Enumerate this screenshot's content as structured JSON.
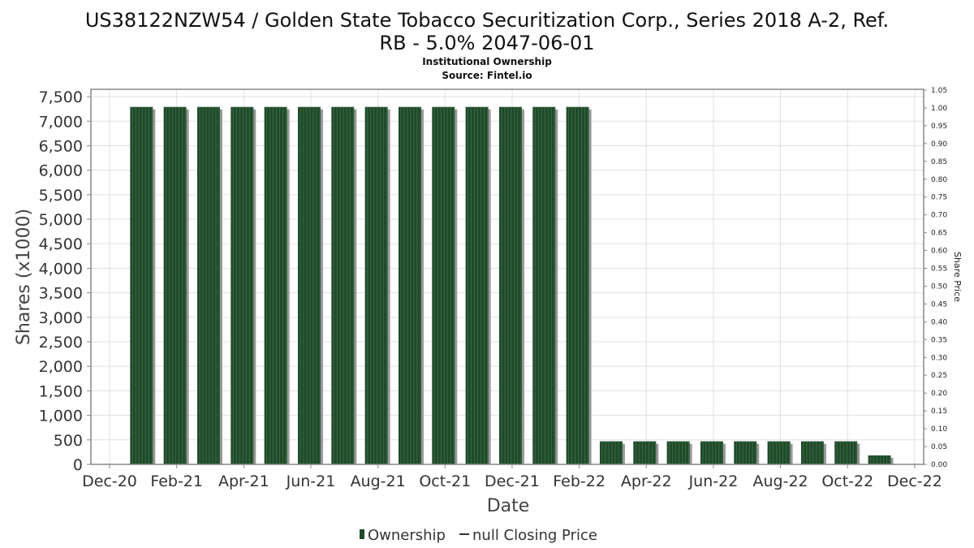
{
  "chart_data": {
    "type": "bar",
    "title": "US38122NZW54 / Golden State Tobacco Securitization Corp., Series 2018 A-2, Ref. RB - 5.0% 2047-06-01",
    "title_lines": [
      "US38122NZW54 / Golden State Tobacco Securitization Corp., Series 2018 A-2, Ref.",
      "RB - 5.0% 2047-06-01"
    ],
    "subtitle": "Institutional Ownership",
    "source": "Source: Fintel.io",
    "xlabel": "Date",
    "ylabel": "Shares (x1000)",
    "y2label": "Share Price",
    "x_tick_labels": [
      "Dec-20",
      "Feb-21",
      "Apr-21",
      "Jun-21",
      "Aug-21",
      "Oct-21",
      "Dec-21",
      "Feb-22",
      "Apr-22",
      "Jun-22",
      "Aug-22",
      "Oct-22",
      "Dec-22"
    ],
    "y_ticks": [
      0,
      500,
      1000,
      1500,
      2000,
      2500,
      3000,
      3500,
      4000,
      4500,
      5000,
      5500,
      6000,
      6500,
      7000,
      7500
    ],
    "y_tick_labels": [
      "0",
      "500",
      "1,000",
      "1,500",
      "2,000",
      "2,500",
      "3,000",
      "3,500",
      "4,000",
      "4,500",
      "5,000",
      "5,500",
      "6,000",
      "6,500",
      "7,000",
      "7,500"
    ],
    "y2_tick_labels": [
      "0.00",
      "0.05",
      "0.10",
      "0.15",
      "0.20",
      "0.25",
      "0.30",
      "0.35",
      "0.40",
      "0.45",
      "0.50",
      "0.55",
      "0.60",
      "0.65",
      "0.70",
      "0.75",
      "0.80",
      "0.85",
      "0.90",
      "0.95",
      "1.00",
      "1.05"
    ],
    "ylim": [
      0,
      7650
    ],
    "y2lim": [
      0,
      1.05
    ],
    "grid": true,
    "categories": [
      "Jan-21",
      "Feb-21",
      "Mar-21",
      "Apr-21",
      "May-21",
      "Jun-21",
      "Jul-21",
      "Aug-21",
      "Sep-21",
      "Oct-21",
      "Nov-21",
      "Dec-21",
      "Jan-22",
      "Feb-22",
      "Mar-22",
      "Apr-22",
      "May-22",
      "Jun-22",
      "Jul-22",
      "Aug-22",
      "Sep-22",
      "Oct-22",
      "Nov-22"
    ],
    "series": [
      {
        "name": "Ownership",
        "color": "#1f4a2a",
        "values": [
          7290,
          7290,
          7290,
          7290,
          7290,
          7290,
          7290,
          7290,
          7290,
          7290,
          7290,
          7290,
          7290,
          7290,
          470,
          470,
          470,
          470,
          470,
          470,
          470,
          470,
          183
        ]
      }
    ],
    "legend": {
      "placement": "bottom",
      "items": [
        "Ownership",
        "null Closing Price"
      ]
    }
  }
}
